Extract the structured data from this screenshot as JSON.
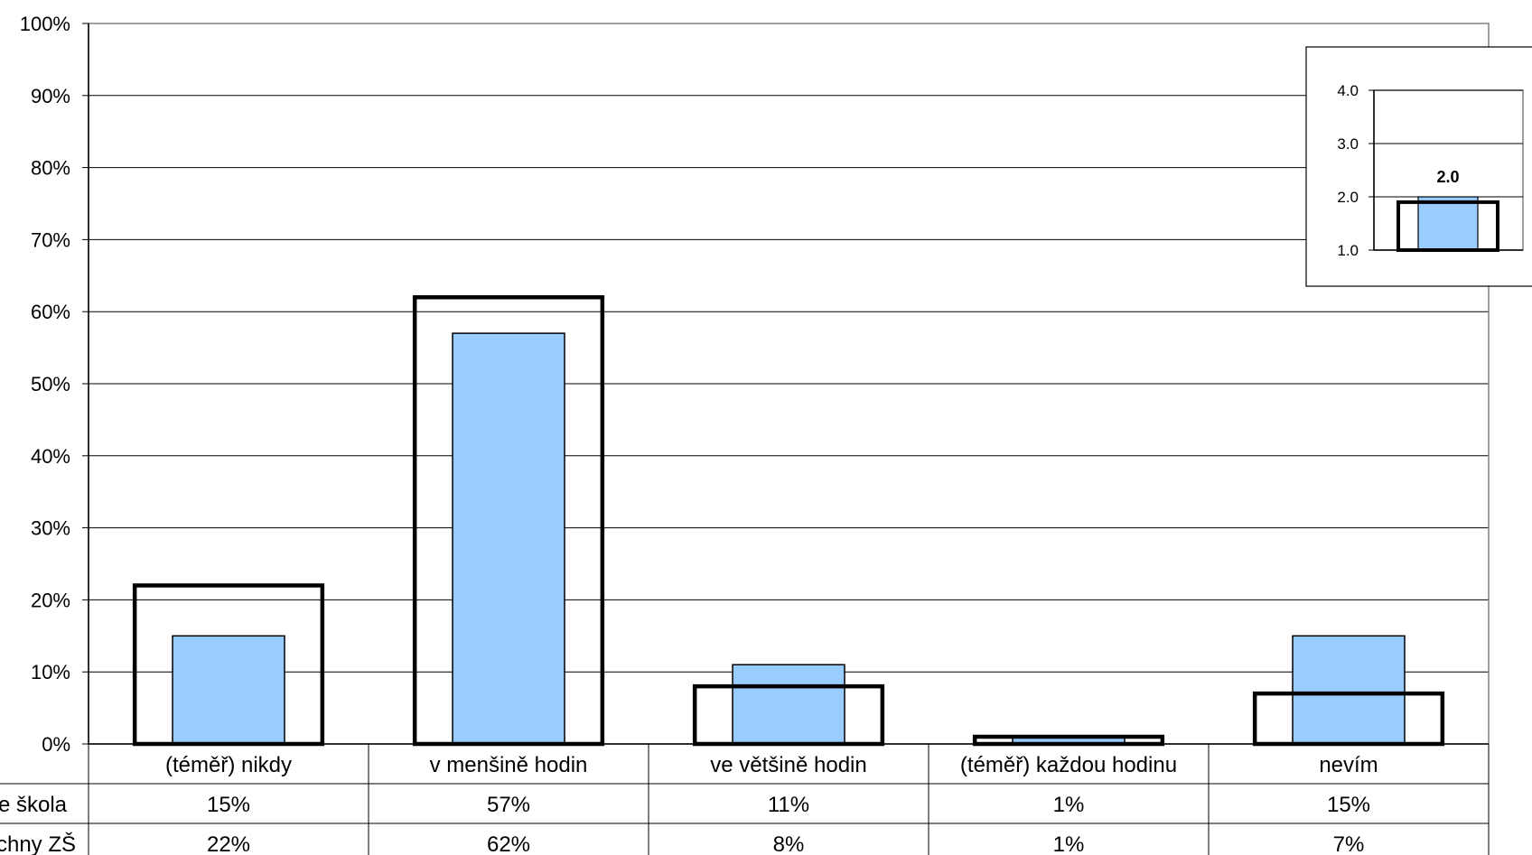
{
  "chart_data": [
    {
      "type": "bar",
      "categories": [
        "(téměř) nikdy",
        "v menšině hodin",
        "ve většině hodin",
        "(téměř) každou hodinu",
        "nevím"
      ],
      "series": [
        {
          "name": "Vaše škola",
          "values": [
            15,
            57,
            11,
            1,
            15
          ],
          "color": "#99CCFF",
          "style": "filled",
          "labels": [
            "15%",
            "57%",
            "11%",
            "1%",
            "15%"
          ]
        },
        {
          "name": "Všechny ZŠ",
          "values": [
            22,
            62,
            8,
            1,
            7
          ],
          "color": "#000000",
          "style": "outline",
          "labels": [
            "22%",
            "62%",
            "8%",
            "1%",
            "7%"
          ]
        }
      ],
      "ylim": [
        0,
        100
      ],
      "yticks": [
        "0%",
        "10%",
        "20%",
        "30%",
        "40%",
        "50%",
        "60%",
        "70%",
        "80%",
        "90%",
        "100%"
      ],
      "grid": true,
      "data_table": true
    },
    {
      "type": "bar",
      "series": [
        {
          "name": "Vaše škola",
          "values": [
            2.0
          ],
          "color": "#99CCFF",
          "style": "filled",
          "label": "2.0"
        },
        {
          "name": "Všechny ZŠ",
          "values": [
            1.9
          ],
          "color": "#000000",
          "style": "outline"
        }
      ],
      "ylim": [
        1.0,
        4.0
      ],
      "yticks": [
        "1.0",
        "2.0",
        "3.0",
        "4.0"
      ],
      "grid": true,
      "placement": "top-right inset"
    }
  ]
}
